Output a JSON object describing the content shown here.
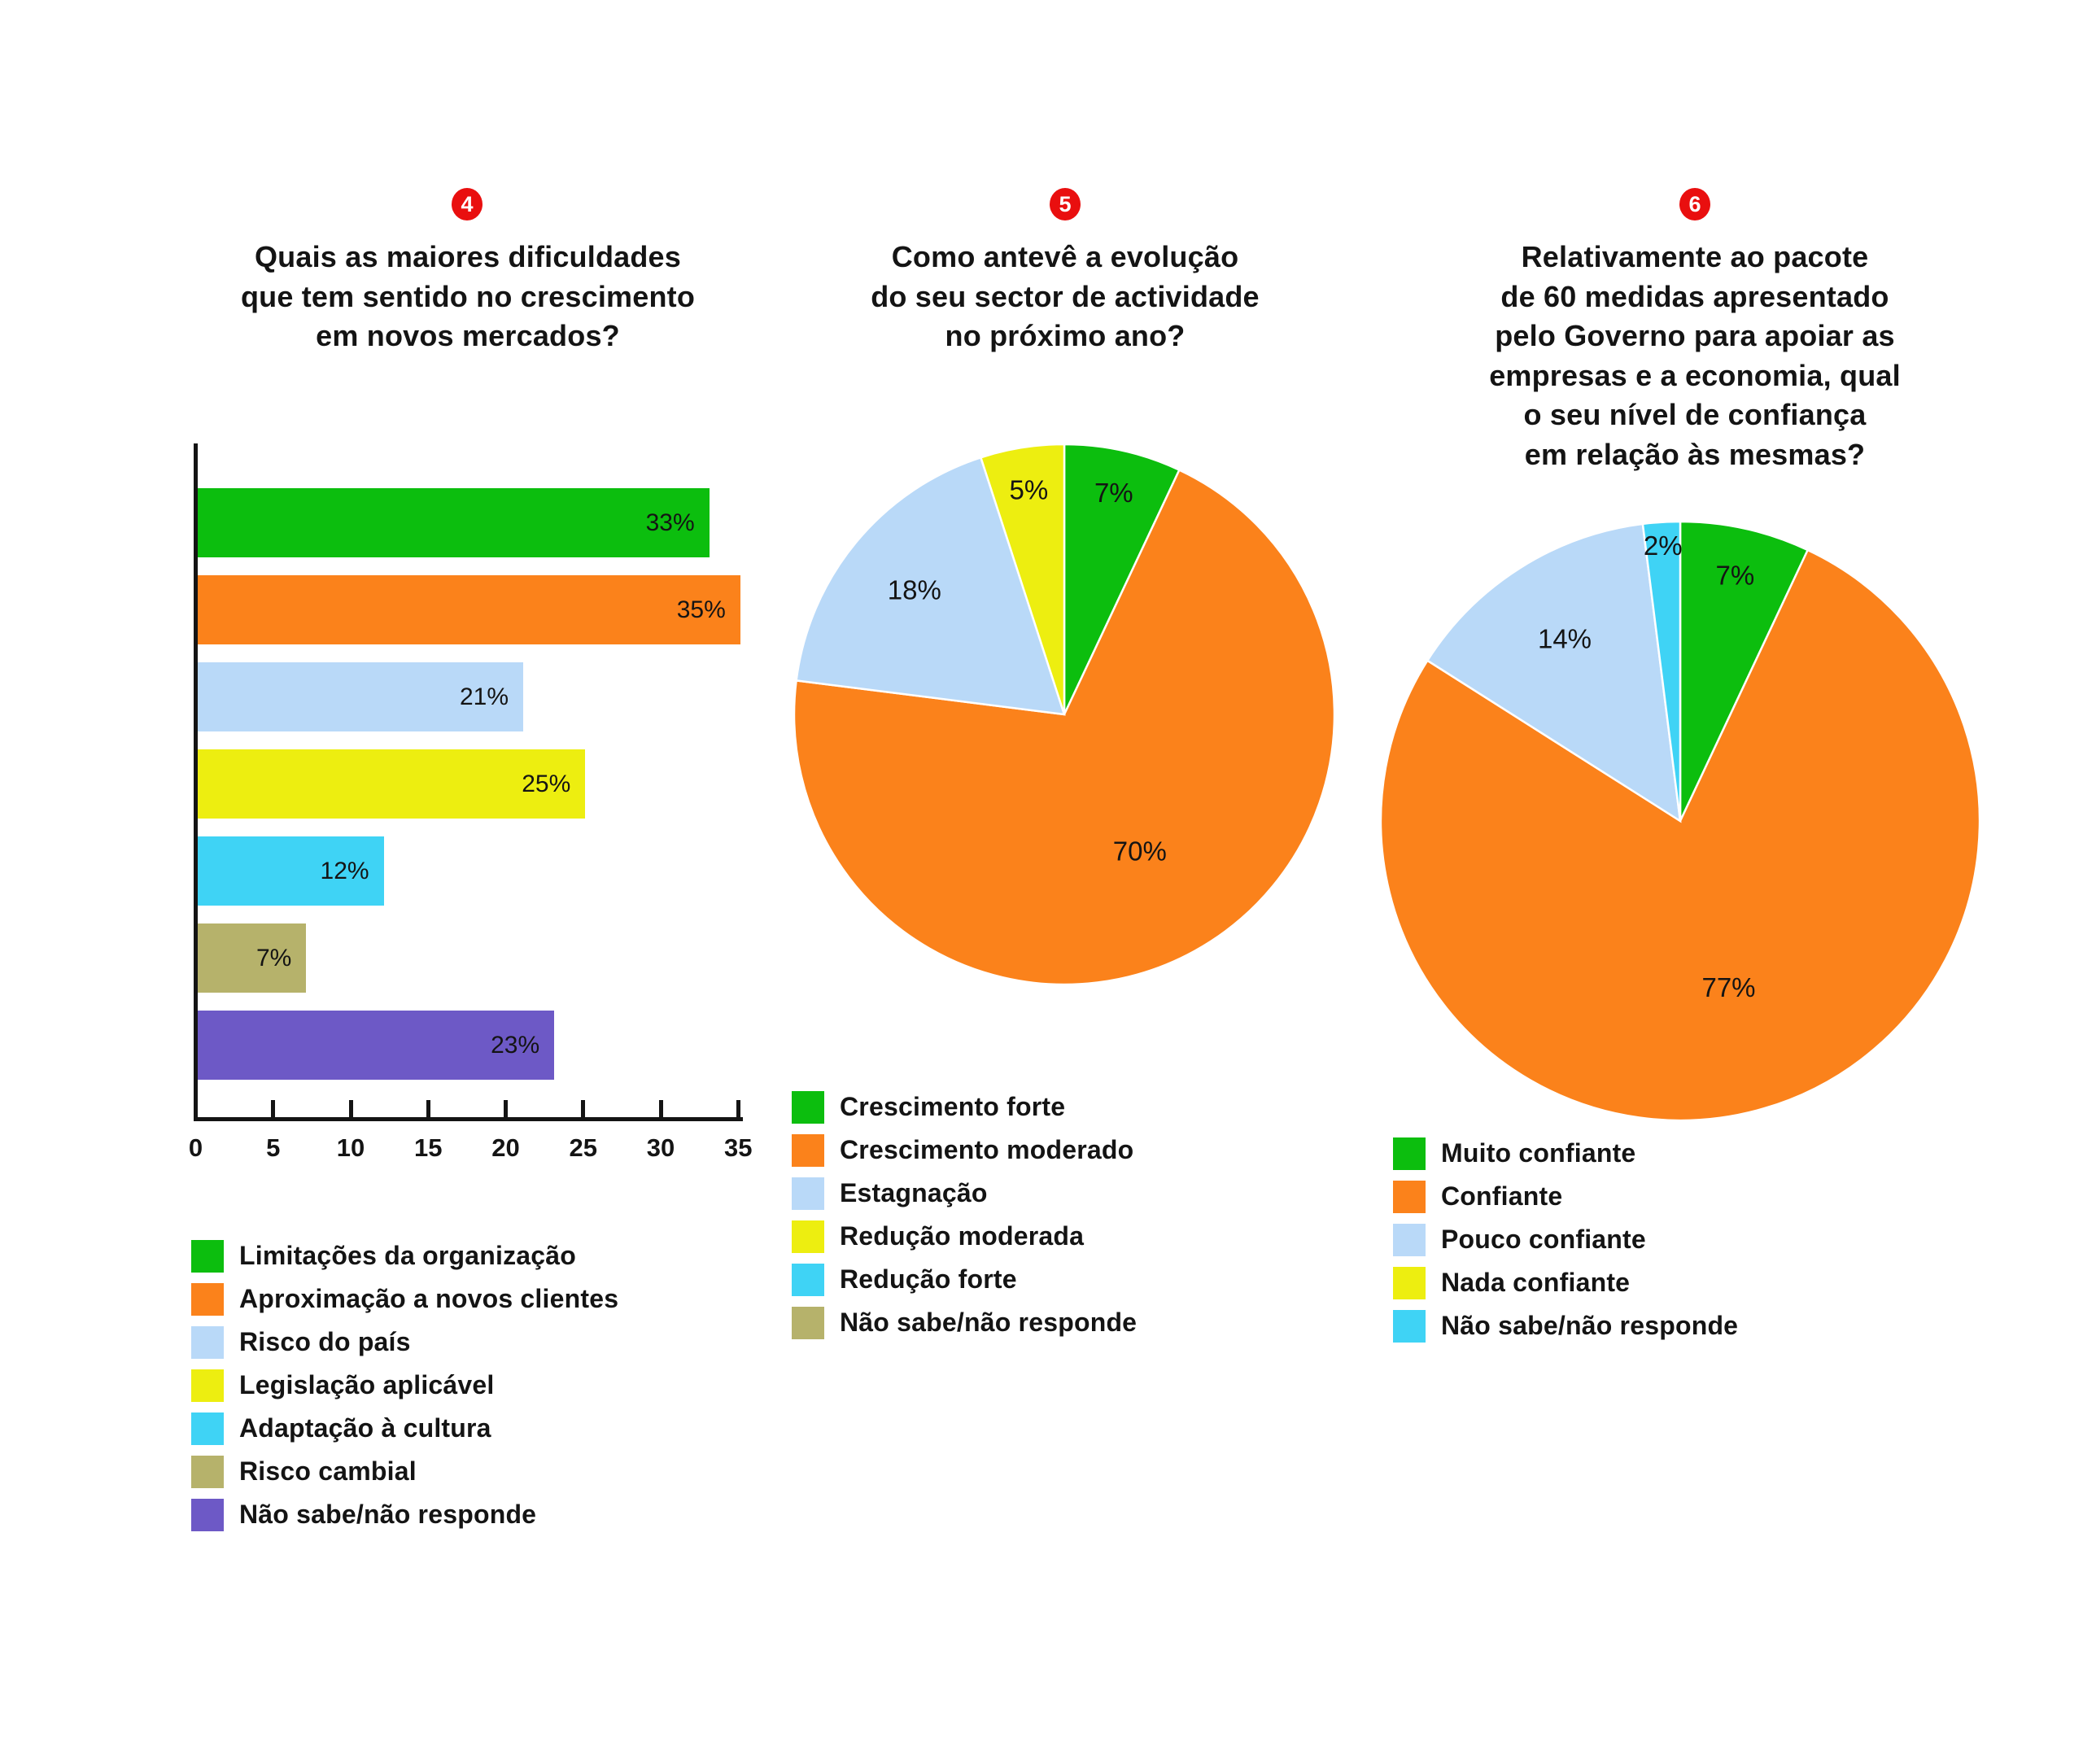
{
  "palette": {
    "green": "#0CBE0E",
    "orange": "#FB821B",
    "light_blue": "#B9D9F8",
    "yellow": "#EDEE10",
    "cyan": "#3FD3F5",
    "khaki": "#B6B26B",
    "purple": "#6D59C6",
    "badge_red": "#E90F0F",
    "text": "#141414"
  },
  "charts": [
    {
      "badge": "4",
      "title_lines": [
        "Quais as maiores dificuldades",
        "que tem sentido no crescimento",
        "em novos mercados?"
      ],
      "chart_data": {
        "type": "bar",
        "orientation": "horizontal",
        "categories": [
          "Limitações da organização",
          "Aproximação a novos clientes",
          "Risco do país",
          "Legislação aplicável",
          "Adaptação à cultura",
          "Risco cambial",
          "Não sabe/não responde"
        ],
        "values": [
          33,
          35,
          21,
          25,
          12,
          7,
          23
        ],
        "value_labels": [
          "33%",
          "35%",
          "21%",
          "25%",
          "12%",
          "7%",
          "23%"
        ],
        "colors": [
          "#0CBE0E",
          "#FB821B",
          "#B9D9F8",
          "#EDEE10",
          "#3FD3F5",
          "#B6B26B",
          "#6D59C6"
        ],
        "x_ticks": [
          0,
          5,
          10,
          15,
          20,
          25,
          30,
          35
        ],
        "xlim": [
          0,
          35
        ],
        "grid": false
      },
      "legend": [
        {
          "label": "Limitações da organização",
          "color": "#0CBE0E"
        },
        {
          "label": "Aproximação a novos clientes",
          "color": "#FB821B"
        },
        {
          "label": "Risco do país",
          "color": "#B9D9F8"
        },
        {
          "label": "Legislação aplicável",
          "color": "#EDEE10"
        },
        {
          "label": "Adaptação à cultura",
          "color": "#3FD3F5"
        },
        {
          "label": "Risco cambial",
          "color": "#B6B26B"
        },
        {
          "label": "Não sabe/não responde",
          "color": "#6D59C6"
        }
      ]
    },
    {
      "badge": "5",
      "title_lines": [
        "Como antevê a evolução",
        "do seu sector de actividade",
        "no próximo ano?"
      ],
      "chart_data": {
        "type": "pie",
        "start_angle_deg": 0,
        "direction": "clockwise",
        "slices": [
          {
            "label": "Crescimento forte",
            "value": 7,
            "pct_label": "7%",
            "color": "#0CBE0E"
          },
          {
            "label": "Crescimento moderado",
            "value": 70,
            "pct_label": "70%",
            "color": "#FB821B"
          },
          {
            "label": "Estagnação",
            "value": 18,
            "pct_label": "18%",
            "color": "#B9D9F8"
          },
          {
            "label": "Redução moderada",
            "value": 5,
            "pct_label": "5%",
            "color": "#EDEE10"
          }
        ]
      },
      "legend": [
        {
          "label": "Crescimento forte",
          "color": "#0CBE0E"
        },
        {
          "label": "Crescimento moderado",
          "color": "#FB821B"
        },
        {
          "label": "Estagnação",
          "color": "#B9D9F8"
        },
        {
          "label": "Redução moderada",
          "color": "#EDEE10"
        },
        {
          "label": "Redução forte",
          "color": "#3FD3F5"
        },
        {
          "label": "Não sabe/não responde",
          "color": "#B6B26B"
        }
      ]
    },
    {
      "badge": "6",
      "title_lines": [
        "Relativamente ao pacote",
        "de 60 medidas apresentado",
        "pelo Governo para apoiar as",
        "empresas e a economia, qual",
        "o seu nível de confiança",
        "em relação às mesmas?"
      ],
      "chart_data": {
        "type": "pie",
        "start_angle_deg": 0,
        "direction": "clockwise",
        "slices": [
          {
            "label": "Muito confiante",
            "value": 7,
            "pct_label": "7%",
            "color": "#0CBE0E"
          },
          {
            "label": "Confiante",
            "value": 77,
            "pct_label": "77%",
            "color": "#FB821B"
          },
          {
            "label": "Pouco confiante",
            "value": 14,
            "pct_label": "14%",
            "color": "#B9D9F8"
          },
          {
            "label": "Não sabe/não responde",
            "value": 2,
            "pct_label": "2%",
            "color": "#3FD3F5"
          }
        ]
      },
      "legend": [
        {
          "label": "Muito confiante",
          "color": "#0CBE0E"
        },
        {
          "label": "Confiante",
          "color": "#FB821B"
        },
        {
          "label": "Pouco confiante",
          "color": "#B9D9F8"
        },
        {
          "label": "Nada confiante",
          "color": "#EDEE10"
        },
        {
          "label": "Não sabe/não responde",
          "color": "#3FD3F5"
        }
      ]
    }
  ]
}
